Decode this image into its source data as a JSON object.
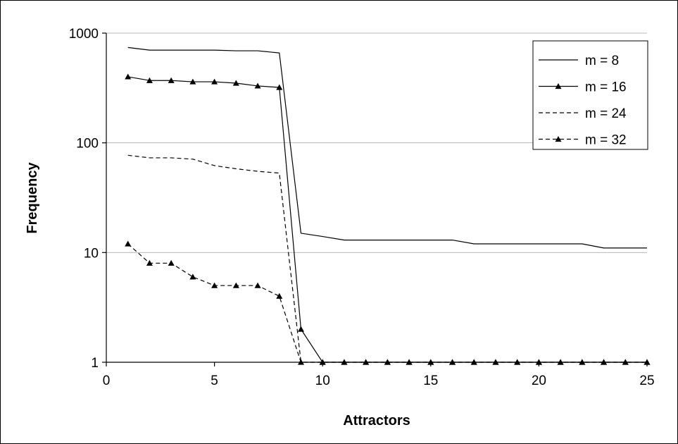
{
  "chart_data": {
    "type": "line",
    "title": "",
    "xlabel": "Attractors",
    "ylabel": "Frequency",
    "xlim": [
      0,
      25
    ],
    "ylim": [
      1,
      1000
    ],
    "y_scale": "log",
    "x_ticks": [
      0,
      5,
      10,
      15,
      20,
      25
    ],
    "y_ticks": [
      1,
      10,
      100,
      1000
    ],
    "x_tick_labels": [
      "0",
      "5",
      "10",
      "15",
      "20",
      "25"
    ],
    "y_tick_labels": [
      "1",
      "10",
      "100",
      "1000"
    ],
    "grid": "horizontal",
    "legend_position": "top-right",
    "x": [
      1,
      2,
      3,
      4,
      5,
      6,
      7,
      8,
      9,
      10,
      11,
      12,
      13,
      14,
      15,
      16,
      17,
      18,
      19,
      20,
      21,
      22,
      23,
      24,
      25
    ],
    "series": [
      {
        "name": "m = 8",
        "line": "solid",
        "marker": "none",
        "values": [
          740,
          700,
          700,
          700,
          700,
          690,
          690,
          660,
          15,
          14,
          13,
          13,
          13,
          13,
          13,
          13,
          12,
          12,
          12,
          12,
          12,
          12,
          11,
          11,
          11
        ]
      },
      {
        "name": "m = 16",
        "line": "solid",
        "marker": "triangle",
        "values": [
          400,
          370,
          370,
          360,
          360,
          350,
          330,
          320,
          2,
          1,
          1,
          1,
          1,
          1,
          1,
          1,
          1,
          1,
          1,
          1,
          1,
          1,
          1,
          1,
          1
        ]
      },
      {
        "name": "m = 24",
        "line": "dashed",
        "marker": "none",
        "values": [
          77,
          73,
          73,
          71,
          62,
          58,
          55,
          53,
          1,
          1,
          1,
          1,
          1,
          1,
          1,
          1,
          1,
          1,
          1,
          1,
          1,
          1,
          1,
          1,
          1
        ]
      },
      {
        "name": "m = 32",
        "line": "dashed",
        "marker": "triangle",
        "values": [
          12,
          8,
          8,
          6,
          5,
          5,
          5,
          4,
          1,
          1,
          1,
          1,
          1,
          1,
          1,
          1,
          1,
          1,
          1,
          1,
          1,
          1,
          1,
          1,
          1
        ]
      }
    ]
  }
}
